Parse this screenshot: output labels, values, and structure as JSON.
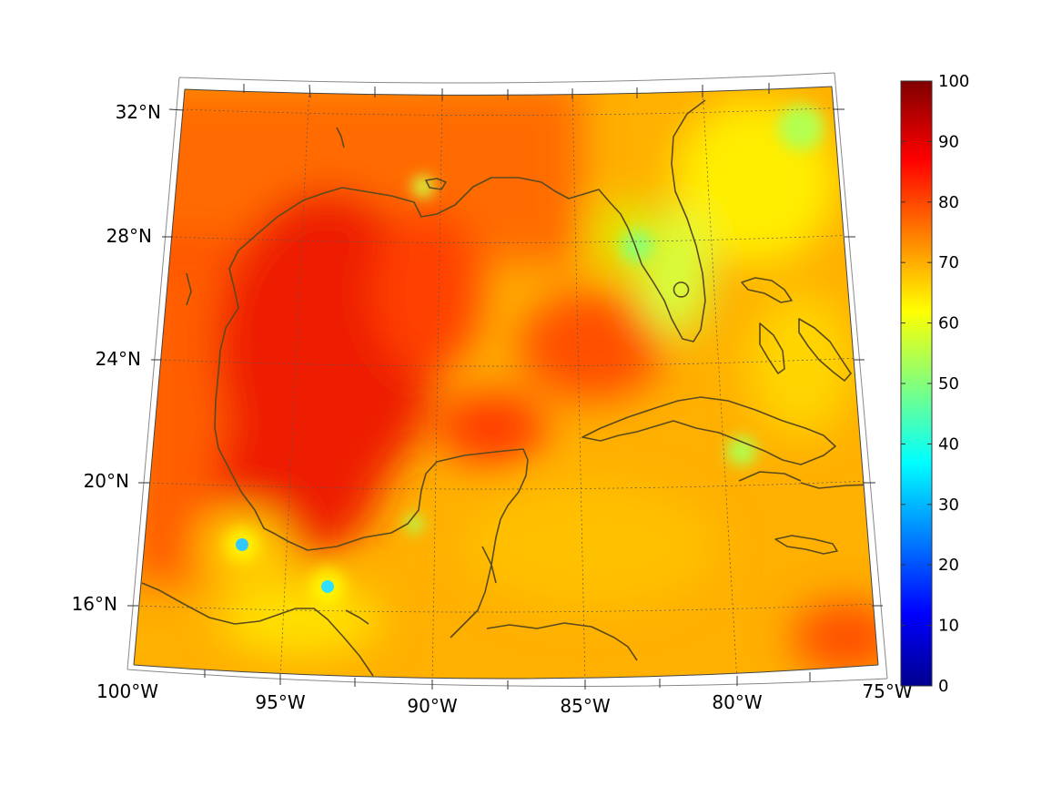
{
  "map": {
    "lon_labels": [
      "100°W",
      "95°W",
      "90°W",
      "85°W",
      "80°W",
      "75°W"
    ],
    "lat_labels": [
      "16°N",
      "20°N",
      "24°N",
      "28°N",
      "32°N"
    ]
  },
  "colorbar": {
    "ticks": [
      "0",
      "10",
      "20",
      "30",
      "40",
      "50",
      "60",
      "70",
      "80",
      "90",
      "100"
    ],
    "colormap": [
      "#00008f",
      "#0000ff",
      "#00ffff",
      "#ffff00",
      "#ff0000",
      "#800000"
    ]
  },
  "chart_data": {
    "type": "heatmap",
    "projection": "conic",
    "lon_range": [
      -100,
      -75
    ],
    "lat_range": [
      14,
      32
    ],
    "value_range": [
      0,
      100
    ],
    "grid": true
  },
  "colors": {
    "coast": "#5a4a1e",
    "grid": "#555555"
  }
}
